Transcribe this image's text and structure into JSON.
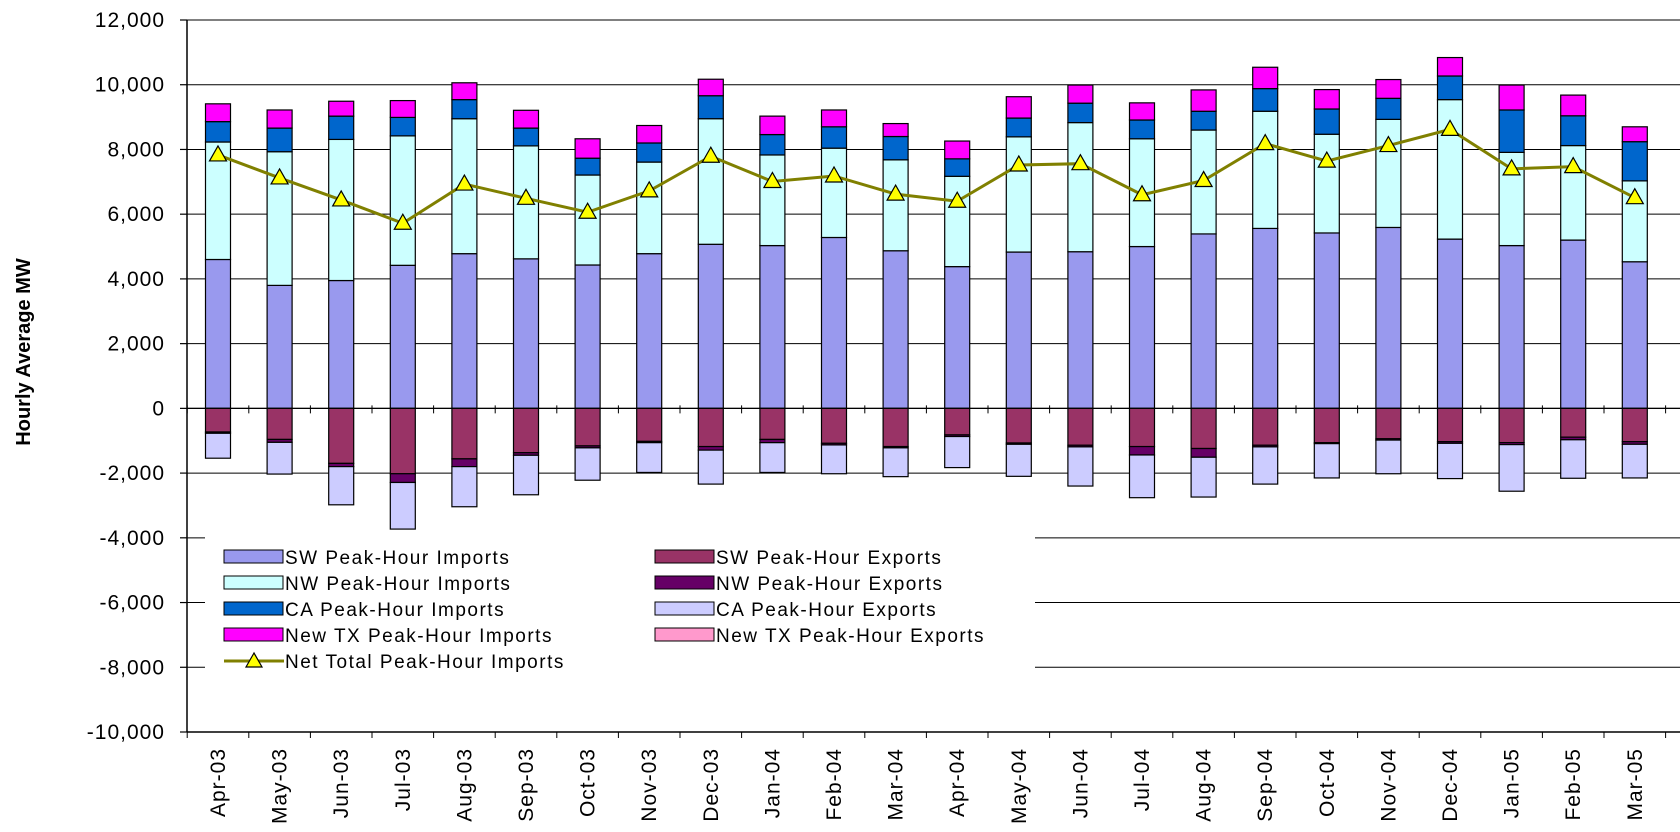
{
  "chart_data": {
    "type": "bar",
    "stacked": true,
    "title": "",
    "xlabel": "",
    "ylabel": "Hourly Average MW",
    "ylim": [
      -10000,
      12000
    ],
    "yticks": [
      12000,
      10000,
      8000,
      6000,
      4000,
      2000,
      0,
      -2000,
      -4000,
      -6000,
      -8000,
      -10000
    ],
    "ytick_labels": [
      "12,000",
      "10,000",
      "8,000",
      "6,000",
      "4,000",
      "2,000",
      "0",
      "-2,000",
      "-4,000",
      "-6,000",
      "-8,000",
      "-10,000"
    ],
    "grid": true,
    "legend_position": "lower-left",
    "categories": [
      "Apr-03",
      "May-03",
      "Jun-03",
      "Jul-03",
      "Aug-03",
      "Sep-03",
      "Oct-03",
      "Nov-03",
      "Dec-03",
      "Jan-04",
      "Feb-04",
      "Mar-04",
      "Apr-04",
      "May-04",
      "Jun-04",
      "Jul-04",
      "Aug-04",
      "Sep-04",
      "Oct-04",
      "Nov-04",
      "Dec-04",
      "Jan-05",
      "Feb-05",
      "Mar-05"
    ],
    "series": [
      {
        "name": "SW Peak-Hour Imports",
        "group": "imports",
        "color": "#9999ee",
        "values": [
          4600,
          3800,
          3950,
          4420,
          4780,
          4620,
          4430,
          4780,
          5070,
          5030,
          5280,
          4870,
          4380,
          4830,
          4840,
          5000,
          5390,
          5560,
          5420,
          5590,
          5230,
          5030,
          5200,
          4530
        ]
      },
      {
        "name": "NW Peak-Hour Imports",
        "group": "imports",
        "color": "#ccffff",
        "values": [
          3630,
          4130,
          4360,
          4000,
          4170,
          3490,
          2780,
          2830,
          3880,
          2800,
          2760,
          2810,
          2790,
          3560,
          3990,
          3330,
          3210,
          3620,
          3050,
          3340,
          4310,
          2880,
          2920,
          2500
        ]
      },
      {
        "name": "CA Peak-Hour Imports",
        "group": "imports",
        "color": "#0066cc",
        "values": [
          630,
          730,
          720,
          570,
          590,
          550,
          520,
          590,
          710,
          630,
          660,
          720,
          540,
          580,
          600,
          580,
          580,
          700,
          780,
          650,
          730,
          1310,
          920,
          1210
        ]
      },
      {
        "name": "New TX Peak-Hour Imports",
        "group": "imports",
        "color": "#ff00ff",
        "values": [
          550,
          560,
          460,
          520,
          520,
          550,
          600,
          540,
          510,
          570,
          520,
          400,
          550,
          660,
          560,
          530,
          660,
          660,
          600,
          580,
          570,
          770,
          640,
          460
        ]
      },
      {
        "name": "SW Peak-Hour Exports",
        "group": "exports",
        "color": "#993366",
        "values": [
          -730,
          -960,
          -1700,
          -2020,
          -1560,
          -1370,
          -1160,
          -1020,
          -1180,
          -960,
          -1080,
          -1180,
          -820,
          -1070,
          -1140,
          -1180,
          -1240,
          -1140,
          -1060,
          -940,
          -1030,
          -1060,
          -890,
          -1030
        ]
      },
      {
        "name": "NW Peak-Hour Exports",
        "group": "exports",
        "color": "#660066",
        "values": [
          -40,
          -90,
          -100,
          -270,
          -240,
          -80,
          -60,
          -40,
          -110,
          -100,
          -50,
          -40,
          -50,
          -40,
          -50,
          -260,
          -270,
          -50,
          -30,
          -40,
          -50,
          -60,
          -80,
          -80
        ]
      },
      {
        "name": "CA Peak-Hour Exports",
        "group": "exports",
        "color": "#ccccff",
        "values": [
          -770,
          -980,
          -1180,
          -1440,
          -1240,
          -1220,
          -1000,
          -920,
          -1050,
          -920,
          -890,
          -890,
          -960,
          -990,
          -1210,
          -1320,
          -1230,
          -1150,
          -1060,
          -1040,
          -1090,
          -1440,
          -1190,
          -1040
        ]
      },
      {
        "name": "New TX Peak-Hour Exports",
        "group": "exports",
        "color": "#ff99cc",
        "values": [
          0,
          0,
          0,
          0,
          0,
          0,
          0,
          0,
          0,
          0,
          0,
          0,
          0,
          0,
          0,
          0,
          0,
          0,
          0,
          0,
          0,
          0,
          0,
          0
        ]
      },
      {
        "name": "Net Total Peak-Hour Imports",
        "type": "line",
        "color": "#808000",
        "marker_color": "#ffff00",
        "values": [
          7830,
          7120,
          6440,
          5720,
          6930,
          6490,
          6060,
          6720,
          7790,
          7010,
          7180,
          6620,
          6400,
          7520,
          7560,
          6600,
          7040,
          8180,
          7640,
          8120,
          8620,
          7400,
          7470,
          6510
        ]
      }
    ]
  }
}
